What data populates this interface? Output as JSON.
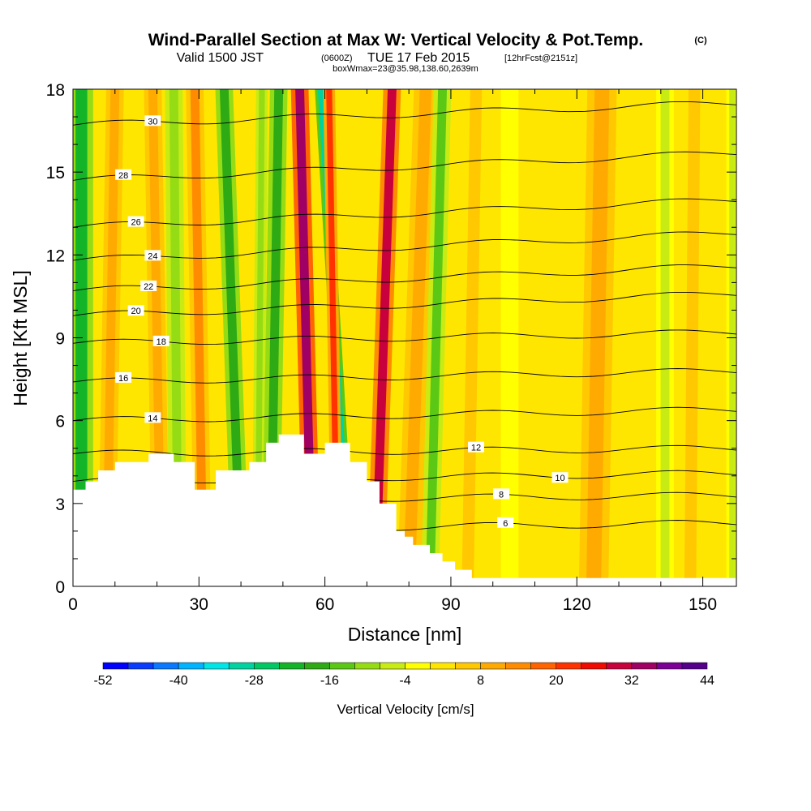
{
  "chart_data": {
    "type": "heatmap",
    "title": "Wind-Parallel Section at Max W: Vertical Velocity & Pot.Temp.",
    "title_mark": "(C)",
    "subtitle_main": "Valid 1500 JST",
    "subtitle_utc": "(0600Z)",
    "subtitle_date": "TUE 17 Feb 2015",
    "subtitle_fcst": "[12hrFcst@2151z]",
    "subtitle_box": "boxWmax=23@35.98,138.60,2639m",
    "xlabel": "Distance [nm]",
    "ylabel": "Height [Kft MSL]",
    "xlim": [
      0,
      158
    ],
    "ylim": [
      0,
      18
    ],
    "x_ticks": [
      0,
      30,
      60,
      90,
      120,
      150
    ],
    "y_ticks": [
      0,
      3,
      6,
      9,
      12,
      15,
      18
    ],
    "colorbar": {
      "label": "Vertical Velocity [cm/s]",
      "tick_labels": [
        "-52",
        "-40",
        "-28",
        "-16",
        "-4",
        "8",
        "20",
        "32",
        "44"
      ],
      "tick_values": [
        -52,
        -40,
        -28,
        -16,
        -4,
        8,
        20,
        32,
        44
      ],
      "colors": [
        "#0000ff",
        "#0a3cff",
        "#0a78ff",
        "#00b4ff",
        "#00e6e6",
        "#00d2a0",
        "#00c864",
        "#14b428",
        "#2daa14",
        "#5ac814",
        "#96dc14",
        "#c8eb14",
        "#ffff00",
        "#ffe600",
        "#ffc800",
        "#ffaa00",
        "#ff8c00",
        "#ff6400",
        "#ff3200",
        "#f00a00",
        "#c8003c",
        "#a00064",
        "#7d0096",
        "#55008c"
      ]
    },
    "terrain_kft": [
      [
        0,
        3.5
      ],
      [
        3,
        3.8
      ],
      [
        6,
        4.2
      ],
      [
        10,
        4.5
      ],
      [
        18,
        4.8
      ],
      [
        24,
        4.5
      ],
      [
        29,
        3.5
      ],
      [
        34,
        4.2
      ],
      [
        42,
        4.5
      ],
      [
        46,
        5.2
      ],
      [
        49,
        5.5
      ],
      [
        55,
        4.8
      ],
      [
        60,
        5.2
      ],
      [
        66,
        4.5
      ],
      [
        70,
        3.8
      ],
      [
        73,
        3.0
      ],
      [
        77,
        2.0
      ],
      [
        79,
        1.8
      ],
      [
        81,
        1.5
      ],
      [
        85,
        1.2
      ],
      [
        88,
        0.9
      ],
      [
        91,
        0.6
      ],
      [
        95,
        0.3
      ],
      [
        100,
        0.3
      ],
      [
        158,
        0.3
      ]
    ],
    "wind_streaks": [
      {
        "x_top": 2,
        "x_bottom": 2,
        "w": -22,
        "width_nm": 4
      },
      {
        "x_top": 10,
        "x_bottom": 8,
        "w": 8,
        "width_nm": 3
      },
      {
        "x_top": 19,
        "x_bottom": 21,
        "w": 10,
        "width_nm": 3
      },
      {
        "x_top": 24,
        "x_bottom": 25,
        "w": -10,
        "width_nm": 3
      },
      {
        "x_top": 29,
        "x_bottom": 31,
        "w": 12,
        "width_nm": 3
      },
      {
        "x_top": 36,
        "x_bottom": 40,
        "w": -20,
        "width_nm": 3
      },
      {
        "x_top": 45,
        "x_bottom": 44,
        "w": -12,
        "width_nm": 2
      },
      {
        "x_top": 49,
        "x_bottom": 47,
        "w": -18,
        "width_nm": 3
      },
      {
        "x_top": 54,
        "x_bottom": 57,
        "w": 34,
        "width_nm": 3
      },
      {
        "x_top": 59,
        "x_bottom": 66,
        "w": -30,
        "width_nm": 2
      },
      {
        "x_top": 61,
        "x_bottom": 63,
        "w": 22,
        "width_nm": 2
      },
      {
        "x_top": 76,
        "x_bottom": 72,
        "w": 30,
        "width_nm": 3
      },
      {
        "x_top": 84,
        "x_bottom": 80,
        "w": 10,
        "width_nm": 4
      },
      {
        "x_top": 88,
        "x_bottom": 85,
        "w": -14,
        "width_nm": 3
      },
      {
        "x_top": 96,
        "x_bottom": 94,
        "w": 6,
        "width_nm": 4
      },
      {
        "x_top": 104,
        "x_bottom": 104,
        "w": -4,
        "width_nm": 3
      },
      {
        "x_top": 126,
        "x_bottom": 124,
        "w": 8,
        "width_nm": 5
      },
      {
        "x_top": 141,
        "x_bottom": 141,
        "w": -8,
        "width_nm": 3
      },
      {
        "x_top": 148,
        "x_bottom": 147,
        "w": 6,
        "width_nm": 4
      },
      {
        "x_top": 157,
        "x_bottom": 157,
        "w": -6,
        "width_nm": 2
      }
    ],
    "theta_contours": [
      {
        "value": 6,
        "y_left": 2.0,
        "y_right": 2.3,
        "label": "6",
        "label_x": 103
      },
      {
        "value": 8,
        "y_left": 3.1,
        "y_right": 3.3,
        "label": "8",
        "label_x": 102
      },
      {
        "value": 10,
        "y_left": 3.8,
        "y_right": 4.1,
        "label": "10",
        "label_x": 116
      },
      {
        "value": 12,
        "y_left": 4.8,
        "y_right": 5.0,
        "label": "12",
        "label_x": 96
      },
      {
        "value": 14,
        "y_left": 6.0,
        "y_right": 6.4,
        "label": "14",
        "label_x": 19
      },
      {
        "value": 16,
        "y_left": 7.4,
        "y_right": 7.8,
        "label": "16",
        "label_x": 12
      },
      {
        "value": 18,
        "y_left": 8.8,
        "y_right": 9.2,
        "label": "18",
        "label_x": 21
      },
      {
        "value": 20,
        "y_left": 9.8,
        "y_right": 10.6,
        "label": "20",
        "label_x": 15
      },
      {
        "value": 22,
        "y_left": 10.7,
        "y_right": 11.6,
        "label": "22",
        "label_x": 18
      },
      {
        "value": 24,
        "y_left": 11.8,
        "y_right": 12.8,
        "label": "24",
        "label_x": 19
      },
      {
        "value": 26,
        "y_left": 13.0,
        "y_right": 14.0,
        "label": "26",
        "label_x": 15
      },
      {
        "value": 28,
        "y_left": 14.7,
        "y_right": 15.7,
        "label": "28",
        "label_x": 12
      },
      {
        "value": 30,
        "y_left": 16.7,
        "y_right": 17.5,
        "label": "30",
        "label_x": 19
      }
    ]
  }
}
